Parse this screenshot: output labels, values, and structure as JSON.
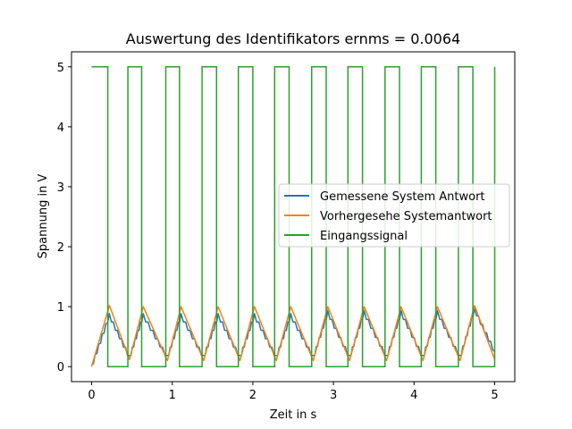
{
  "chart_data": {
    "type": "line",
    "title": "Auswertung des Identifikators ernms = 0.0064",
    "xlabel": "Zeit in s",
    "ylabel": "Spannung in V",
    "xlim": [
      -0.25,
      5.25
    ],
    "ylim": [
      -0.25,
      5.25
    ],
    "xticks": [
      0,
      1,
      2,
      3,
      4,
      5
    ],
    "yticks": [
      0,
      1,
      2,
      3,
      4,
      5
    ],
    "grid": false,
    "legend_position": "center-right",
    "input_signal": {
      "high": 5.0,
      "low": 0.0,
      "edges": [
        [
          0.0,
          "high"
        ],
        [
          0.2,
          "low"
        ],
        [
          0.45,
          "high"
        ],
        [
          0.62,
          "low"
        ],
        [
          0.92,
          "high"
        ],
        [
          1.09,
          "low"
        ],
        [
          1.37,
          "high"
        ],
        [
          1.55,
          "low"
        ],
        [
          1.82,
          "high"
        ],
        [
          2.0,
          "low"
        ],
        [
          2.27,
          "high"
        ],
        [
          2.45,
          "low"
        ],
        [
          2.73,
          "high"
        ],
        [
          2.91,
          "low"
        ],
        [
          3.18,
          "high"
        ],
        [
          3.36,
          "low"
        ],
        [
          3.64,
          "high"
        ],
        [
          3.82,
          "low"
        ],
        [
          4.09,
          "high"
        ],
        [
          4.27,
          "low"
        ],
        [
          4.55,
          "high"
        ],
        [
          4.73,
          "low"
        ],
        [
          5.0,
          "high"
        ]
      ]
    },
    "response_peaks": {
      "x": [
        0.0,
        0.22,
        0.47,
        0.64,
        0.94,
        1.11,
        1.39,
        1.57,
        1.84,
        2.02,
        2.29,
        2.47,
        2.75,
        2.93,
        3.2,
        3.38,
        3.66,
        3.84,
        4.11,
        4.29,
        4.57,
        4.75,
        5.0
      ],
      "measured": [
        0.0,
        0.85,
        0.15,
        0.85,
        0.15,
        0.85,
        0.15,
        0.85,
        0.15,
        0.85,
        0.15,
        0.85,
        0.15,
        0.9,
        0.15,
        0.9,
        0.15,
        0.9,
        0.15,
        0.9,
        0.15,
        0.95,
        0.25
      ],
      "predicted": [
        0.0,
        1.02,
        0.12,
        1.0,
        0.1,
        1.0,
        0.1,
        1.0,
        0.1,
        1.0,
        0.1,
        1.0,
        0.1,
        1.0,
        0.1,
        1.0,
        0.1,
        1.0,
        0.1,
        1.0,
        0.1,
        1.02,
        0.12
      ]
    },
    "series": [
      {
        "name": "Gemessene System Antwort",
        "color": "#1f77b4"
      },
      {
        "name": "Vorhergesehe Systemantwort",
        "color": "#ff7f0e"
      },
      {
        "name": "Eingangssignal",
        "color": "#2ca02c"
      }
    ]
  }
}
